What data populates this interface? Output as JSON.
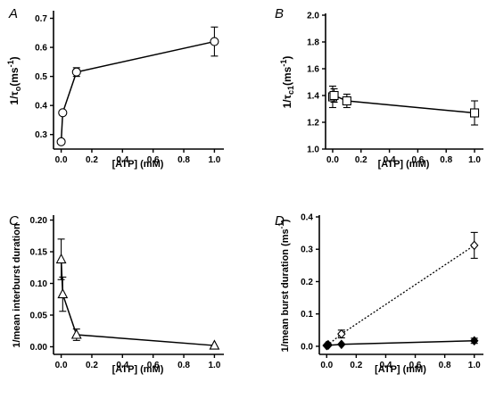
{
  "chart_data": [
    {
      "panel_letter": "A",
      "type": "scatter",
      "xlabel": "[ATP] (mM)",
      "ylabel": "1/τo(ms⁻¹)",
      "ylabel_parts": {
        "base": "1/τ",
        "sub": "o",
        "unit": "(ms",
        "sup": "-1",
        "close": ")"
      },
      "xlim": [
        -0.05,
        1.05
      ],
      "ylim": [
        0.25,
        0.72
      ],
      "xticks": [
        0.0,
        0.2,
        0.4,
        0.6,
        0.8,
        1.0
      ],
      "yticks": [
        0.3,
        0.4,
        0.5,
        0.6,
        0.7
      ],
      "tick_decimals": {
        "x": 1,
        "y": 1
      },
      "series": [
        {
          "marker": "circle",
          "line": "solid",
          "x": [
            0.0,
            0.01,
            0.1,
            1.0
          ],
          "y": [
            0.275,
            0.375,
            0.515,
            0.62
          ],
          "err": [
            0.0,
            0.0,
            0.015,
            0.05
          ]
        }
      ]
    },
    {
      "panel_letter": "B",
      "type": "scatter",
      "xlabel": "[ATP] (mM)",
      "ylabel": "1/τc1(ms⁻¹)",
      "ylabel_parts": {
        "base": "1/τ",
        "sub": "c1",
        "unit": "(ms",
        "sup": "-1",
        "close": ")"
      },
      "xlim": [
        -0.05,
        1.05
      ],
      "ylim": [
        1.0,
        2.0
      ],
      "xticks": [
        0.0,
        0.2,
        0.4,
        0.6,
        0.8,
        1.0
      ],
      "yticks": [
        1.0,
        1.2,
        1.4,
        1.6,
        1.8,
        2.0
      ],
      "tick_decimals": {
        "x": 1,
        "y": 1
      },
      "series": [
        {
          "marker": "square",
          "line": "solid",
          "x": [
            0.0,
            0.01,
            0.1,
            1.0
          ],
          "y": [
            1.39,
            1.4,
            1.36,
            1.27
          ],
          "err": [
            0.08,
            0.05,
            0.05,
            0.09
          ]
        }
      ]
    },
    {
      "panel_letter": "C",
      "type": "scatter",
      "xlabel": "[ATP] (mM)",
      "ylabel": "1/mean interburst duration",
      "xlim": [
        -0.05,
        1.05
      ],
      "ylim": [
        -0.012,
        0.205
      ],
      "xticks": [
        0.0,
        0.2,
        0.4,
        0.6,
        0.8,
        1.0
      ],
      "yticks": [
        0.0,
        0.05,
        0.1,
        0.15,
        0.2
      ],
      "tick_decimals": {
        "x": 1,
        "y": 2
      },
      "series": [
        {
          "marker": "triangle",
          "line": "solid",
          "x": [
            0.0,
            0.01,
            0.1,
            1.0
          ],
          "y": [
            0.138,
            0.083,
            0.019,
            0.002
          ],
          "err": [
            0.032,
            0.027,
            0.009,
            0.0
          ]
        }
      ]
    },
    {
      "panel_letter": "D",
      "type": "scatter",
      "xlabel": "[ATP]  (mM)",
      "ylabel": "1/mean burst duration (ms⁻¹)",
      "ylabel_parts": {
        "base": "1/mean burst duration",
        "sub": "",
        "unit": " (ms",
        "sup": "-1",
        "close": ")"
      },
      "xlim": [
        -0.05,
        1.05
      ],
      "ylim": [
        -0.025,
        0.4
      ],
      "xticks": [
        0.0,
        0.2,
        0.4,
        0.6,
        0.8,
        1.0
      ],
      "yticks": [
        0.0,
        0.1,
        0.2,
        0.3,
        0.4
      ],
      "tick_decimals": {
        "x": 1,
        "y": 1
      },
      "series": [
        {
          "marker": "diamond-open",
          "line": "dotted",
          "x": [
            0.0,
            0.01,
            0.1,
            1.0
          ],
          "y": [
            0.003,
            0.005,
            0.038,
            0.312
          ],
          "err": [
            0.0,
            0.0,
            0.012,
            0.04
          ]
        },
        {
          "marker": "diamond-filled",
          "line": "solid",
          "x": [
            0.0,
            0.01,
            0.1,
            1.0
          ],
          "y": [
            0.002,
            0.003,
            0.006,
            0.017
          ],
          "err": [
            0.0,
            0.0,
            0.0,
            0.008
          ]
        }
      ]
    }
  ]
}
